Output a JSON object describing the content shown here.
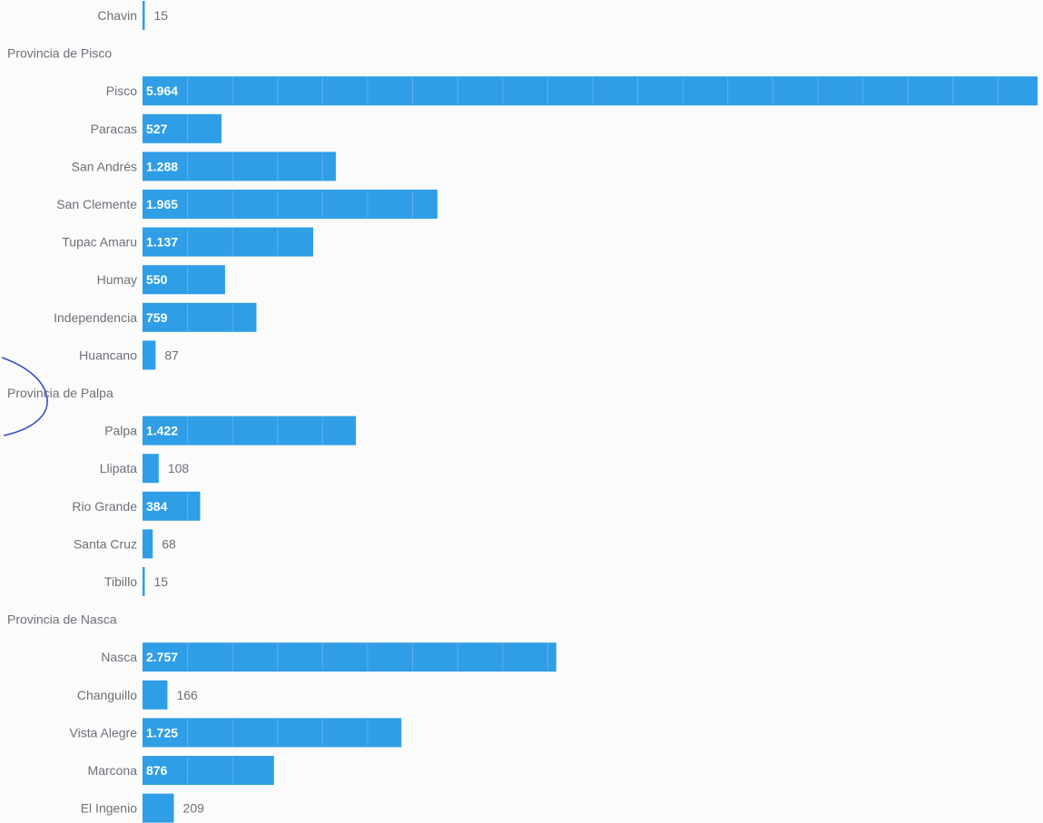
{
  "chart_data": {
    "type": "bar",
    "orientation": "horizontal",
    "rows": [
      {
        "kind": "category",
        "label": "Chavin",
        "value": 15,
        "display": "15"
      },
      {
        "kind": "group",
        "label": "Provincia de Pisco"
      },
      {
        "kind": "category",
        "label": "Pisco",
        "value": 5964,
        "display": "5.964"
      },
      {
        "kind": "category",
        "label": "Paracas",
        "value": 527,
        "display": "527"
      },
      {
        "kind": "category",
        "label": "San Andrés",
        "value": 1288,
        "display": "1.288"
      },
      {
        "kind": "category",
        "label": "San Clemente",
        "value": 1965,
        "display": "1.965"
      },
      {
        "kind": "category",
        "label": "Tupac Amaru",
        "value": 1137,
        "display": "1.137"
      },
      {
        "kind": "category",
        "label": "Humay",
        "value": 550,
        "display": "550"
      },
      {
        "kind": "category",
        "label": "Independencia",
        "value": 759,
        "display": "759"
      },
      {
        "kind": "category",
        "label": "Huancano",
        "value": 87,
        "display": "87"
      },
      {
        "kind": "group",
        "label": "Provincia de Palpa"
      },
      {
        "kind": "category",
        "label": "Palpa",
        "value": 1422,
        "display": "1.422"
      },
      {
        "kind": "category",
        "label": "Llipata",
        "value": 108,
        "display": "108"
      },
      {
        "kind": "category",
        "label": "Rio Grande",
        "value": 384,
        "display": "384"
      },
      {
        "kind": "category",
        "label": "Santa Cruz",
        "value": 68,
        "display": "68"
      },
      {
        "kind": "category",
        "label": "Tibillo",
        "value": 15,
        "display": "15"
      },
      {
        "kind": "group",
        "label": "Provincia de Nasca"
      },
      {
        "kind": "category",
        "label": "Nasca",
        "value": 2757,
        "display": "2.757"
      },
      {
        "kind": "category",
        "label": "Changuillo",
        "value": 166,
        "display": "166"
      },
      {
        "kind": "category",
        "label": "Vista Alegre",
        "value": 1725,
        "display": "1.725"
      },
      {
        "kind": "category",
        "label": "Marcona",
        "value": 876,
        "display": "876"
      },
      {
        "kind": "category",
        "label": "El Ingenio",
        "value": 209,
        "display": "209"
      }
    ],
    "xlim": [
      0,
      6000
    ],
    "bar_color": "#2f9ee6",
    "segment_step": 300,
    "grid": false,
    "legend": "none"
  }
}
